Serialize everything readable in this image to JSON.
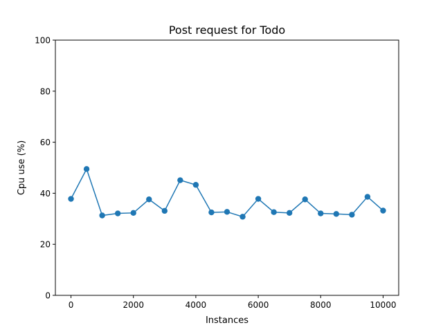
{
  "chart_data": {
    "type": "line",
    "title": "Post request for Todo",
    "xlabel": "Instances",
    "ylabel": "Cpu use (%)",
    "xlim": [
      -500,
      10500
    ],
    "ylim": [
      0,
      100
    ],
    "xticks": [
      0,
      2000,
      4000,
      6000,
      8000,
      10000
    ],
    "yticks": [
      0,
      20,
      40,
      60,
      80,
      100
    ],
    "grid": false,
    "series": [
      {
        "color": "#1f77b4",
        "marker": "circle",
        "x": [
          0,
          500,
          1000,
          1500,
          2000,
          2500,
          3000,
          3500,
          4000,
          4500,
          5000,
          5500,
          6000,
          6500,
          7000,
          7500,
          8000,
          8500,
          9000,
          9500,
          10000
        ],
        "y": [
          37.8,
          49.5,
          31.3,
          32.1,
          32.3,
          37.6,
          33.1,
          45.1,
          43.3,
          32.5,
          32.7,
          30.8,
          37.8,
          32.6,
          32.3,
          37.6,
          32.1,
          31.9,
          31.6,
          38.6,
          33.2
        ]
      }
    ]
  }
}
